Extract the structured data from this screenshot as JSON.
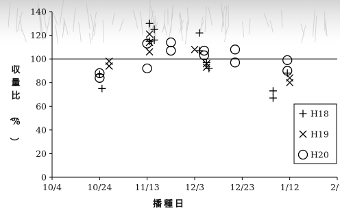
{
  "chart_data": {
    "type": "scatter",
    "xlabel": "播種日",
    "ylabel": "収量比（%）",
    "xlim": [
      "10/4",
      "2/1"
    ],
    "ylim": [
      0,
      140
    ],
    "x_ticks": [
      "10/4",
      "10/24",
      "11/13",
      "12/3",
      "12/23",
      "1/12",
      "2/1"
    ],
    "y_ticks": [
      0,
      20,
      40,
      60,
      80,
      100,
      120,
      140
    ],
    "reference_line": 100,
    "grid": false,
    "legend_position": "bottom-right",
    "series": [
      {
        "name": "H18",
        "marker": "plus",
        "points": [
          {
            "x": "10/24",
            "y": 87
          },
          {
            "x": "10/25",
            "y": 75
          },
          {
            "x": "11/14",
            "y": 130
          },
          {
            "x": "11/14",
            "y": 115
          },
          {
            "x": "11/16",
            "y": 125
          },
          {
            "x": "11/16",
            "y": 116
          },
          {
            "x": "12/5",
            "y": 122
          },
          {
            "x": "12/5",
            "y": 107
          },
          {
            "x": "12/8",
            "y": 97
          },
          {
            "x": "12/9",
            "y": 92
          },
          {
            "x": "1/5",
            "y": 73
          },
          {
            "x": "1/5",
            "y": 67
          },
          {
            "x": "1/11",
            "y": 88
          }
        ]
      },
      {
        "name": "H19",
        "marker": "cross",
        "points": [
          {
            "x": "10/28",
            "y": 98
          },
          {
            "x": "10/28",
            "y": 94
          },
          {
            "x": "11/14",
            "y": 121
          },
          {
            "x": "11/14",
            "y": 106
          },
          {
            "x": "11/14",
            "y": 114
          },
          {
            "x": "12/3",
            "y": 108
          },
          {
            "x": "12/8",
            "y": 96
          },
          {
            "x": "12/8",
            "y": 93
          },
          {
            "x": "1/12",
            "y": 84
          },
          {
            "x": "1/12",
            "y": 80
          }
        ]
      },
      {
        "name": "H20",
        "marker": "circle",
        "points": [
          {
            "x": "10/24",
            "y": 88
          },
          {
            "x": "10/24",
            "y": 84
          },
          {
            "x": "11/13",
            "y": 113
          },
          {
            "x": "11/13",
            "y": 92
          },
          {
            "x": "11/23",
            "y": 114
          },
          {
            "x": "11/23",
            "y": 107
          },
          {
            "x": "12/7",
            "y": 107
          },
          {
            "x": "12/7",
            "y": 103
          },
          {
            "x": "12/20",
            "y": 108
          },
          {
            "x": "12/20",
            "y": 97
          },
          {
            "x": "1/11",
            "y": 99
          },
          {
            "x": "1/11",
            "y": 90
          }
        ]
      }
    ]
  }
}
